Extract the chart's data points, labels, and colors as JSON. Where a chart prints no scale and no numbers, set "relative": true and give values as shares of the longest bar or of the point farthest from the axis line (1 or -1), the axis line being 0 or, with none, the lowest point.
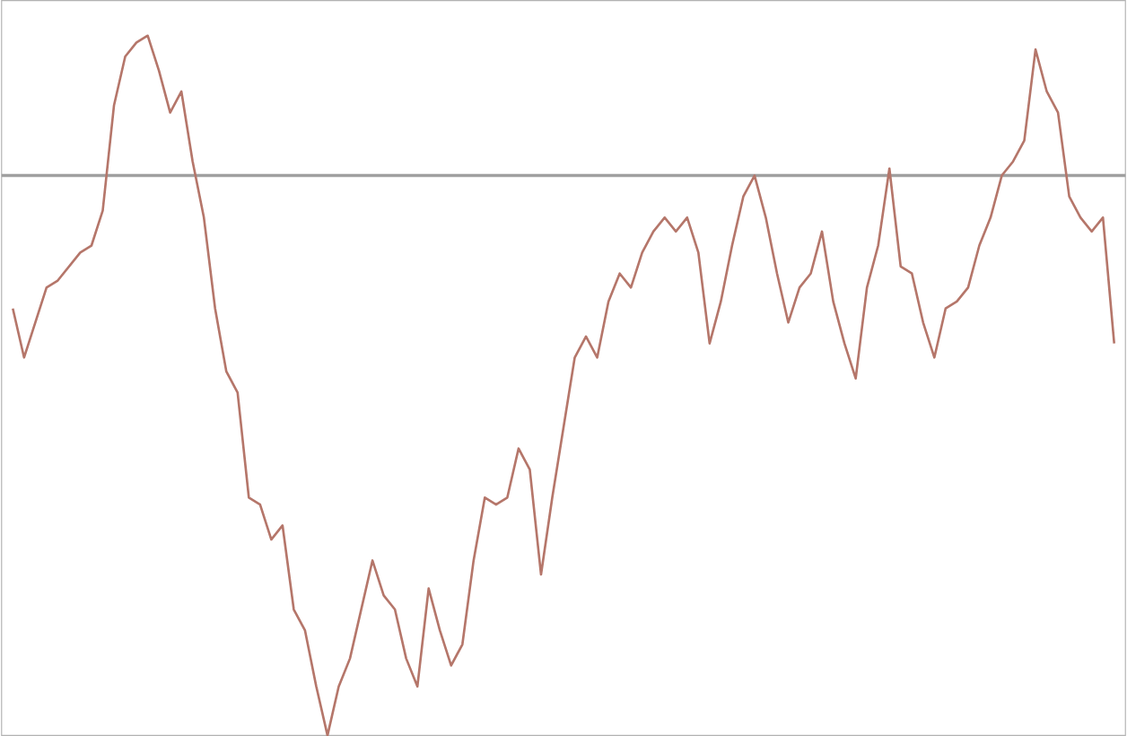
{
  "chart_data": {
    "type": "line",
    "relative": true,
    "color": "#b5766a",
    "marker": "none",
    "line_style": "solid",
    "categories": [
      null,
      null,
      null,
      null,
      null,
      null,
      null,
      null,
      null,
      null,
      null,
      null,
      null,
      null,
      null,
      null,
      null,
      null,
      null,
      null,
      null,
      null,
      null,
      null,
      null,
      null,
      null,
      null,
      null,
      null,
      null,
      null,
      null,
      null,
      null,
      null,
      null,
      null,
      null,
      null,
      null,
      null,
      null,
      null,
      null,
      null,
      null,
      null,
      null,
      null,
      null,
      null,
      null,
      null,
      null,
      null,
      null,
      null,
      null,
      null,
      null,
      null,
      null,
      null,
      null,
      null,
      null,
      null,
      null,
      null,
      null,
      null,
      null,
      null,
      null,
      null,
      null,
      null,
      null,
      null,
      null,
      null,
      null,
      null,
      null,
      null,
      null,
      null,
      null,
      null,
      null,
      null,
      null,
      null,
      null,
      null,
      null,
      null,
      null
    ],
    "values": [
      0.61,
      0.54,
      0.59,
      0.64,
      0.65,
      0.67,
      0.69,
      0.7,
      0.75,
      0.9,
      0.97,
      0.99,
      1,
      0.95,
      0.89,
      0.92,
      0.82,
      0.74,
      0.61,
      0.52,
      0.49,
      0.34,
      0.33,
      0.28,
      0.3,
      0.18,
      0.15,
      0.07,
      0,
      0.07,
      0.11,
      0.18,
      0.25,
      0.2,
      0.18,
      0.11,
      0.07,
      0.21,
      0.15,
      0.1,
      0.13,
      0.25,
      0.34,
      0.33,
      0.34,
      0.41,
      0.38,
      0.23,
      0.34,
      0.44,
      0.54,
      0.57,
      0.54,
      0.62,
      0.66,
      0.64,
      0.69,
      0.72,
      0.74,
      0.72,
      0.74,
      0.69,
      0.56,
      0.62,
      0.7,
      0.77,
      0.8,
      0.74,
      0.66,
      0.59,
      0.64,
      0.66,
      0.72,
      0.62,
      0.56,
      0.51,
      0.64,
      0.7,
      0.81,
      0.67,
      0.66,
      0.59,
      0.54,
      0.61,
      0.62,
      0.64,
      0.7,
      0.74,
      0.8,
      0.82,
      0.85,
      0.98,
      0.92,
      0.89,
      0.77,
      0.74,
      0.72,
      0.74,
      0.56
    ],
    "ref_lines": [
      {
        "axis": "y",
        "value": 0.8,
        "color": "#a0a0a0",
        "line_style": "solid"
      }
    ]
  }
}
